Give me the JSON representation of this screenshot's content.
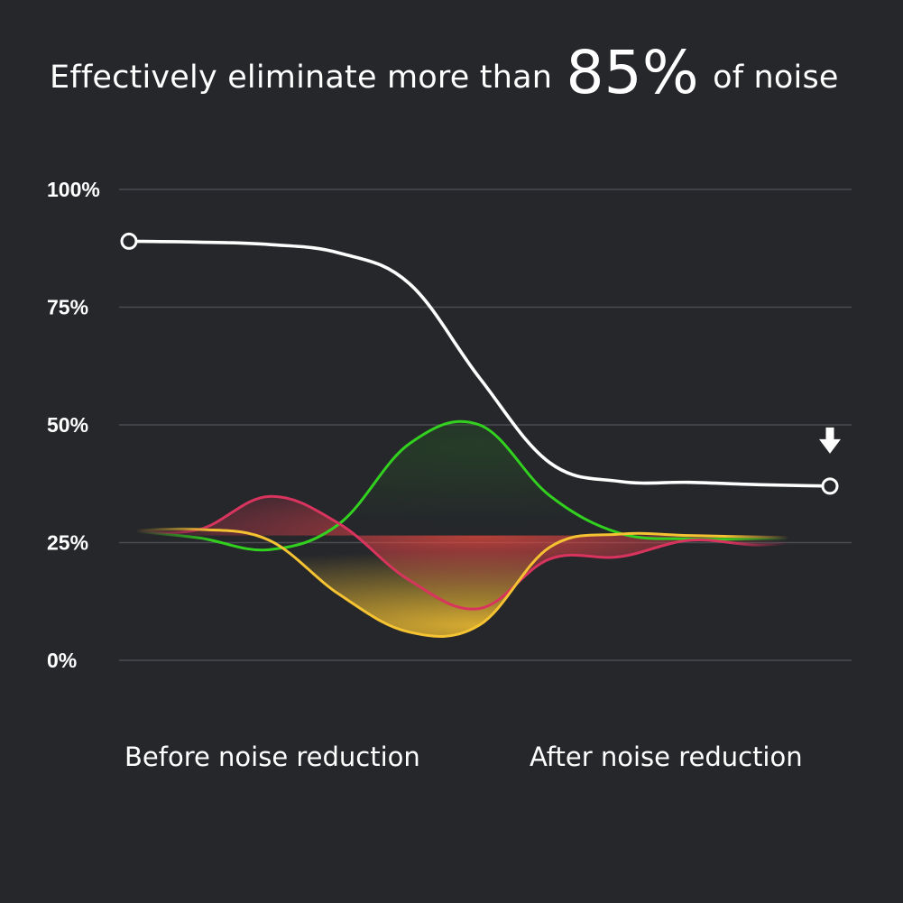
{
  "headline": {
    "prefix": "Effectively eliminate more than",
    "emphasis": "85%",
    "suffix": "of noise"
  },
  "bottom_labels": {
    "before": "Before noise reduction",
    "after": "After noise reduction"
  },
  "colors": {
    "background": "#25272b",
    "gridline": "#4a4c51",
    "total_noise": "#ffffff",
    "green": "#33d11f",
    "red": "#d8345e",
    "yellow": "#f5c232"
  },
  "icons": {
    "marker": "down-arrow-icon"
  },
  "chart_data": {
    "type": "line",
    "title": "",
    "xlabel": "",
    "ylabel": "",
    "x": [
      0,
      1,
      2,
      3,
      4,
      5,
      6,
      7,
      8,
      9,
      10
    ],
    "xlim": [
      0,
      10
    ],
    "ylim": [
      0,
      100
    ],
    "y_ticks": [
      0,
      25,
      50,
      75,
      100
    ],
    "y_tick_labels": [
      "0%",
      "25%",
      "50%",
      "75%",
      "100%"
    ],
    "grid": true,
    "legend": "none",
    "series": [
      {
        "key": "total_noise",
        "color": "#ffffff",
        "markers": "endpoints",
        "values": [
          89,
          88.8,
          88.3,
          86.5,
          80,
          60,
          42,
          38,
          37.8,
          37.3,
          37
        ]
      },
      {
        "key": "green",
        "color": "#33d11f",
        "fill": false,
        "values": [
          27.5,
          26,
          23.5,
          29,
          46,
          50,
          35,
          27,
          25.8,
          25.8,
          25.8
        ]
      },
      {
        "key": "red",
        "color": "#d8345e",
        "fill": true,
        "values": [
          27.5,
          27.8,
          34.8,
          29,
          17,
          11,
          21.5,
          22,
          25.5,
          24.5,
          25.8
        ]
      },
      {
        "key": "yellow",
        "color": "#f5c232",
        "fill": true,
        "values": [
          27.5,
          27.8,
          25.5,
          14,
          6,
          7.5,
          24,
          26.8,
          26.5,
          26.2,
          26
        ]
      }
    ]
  }
}
